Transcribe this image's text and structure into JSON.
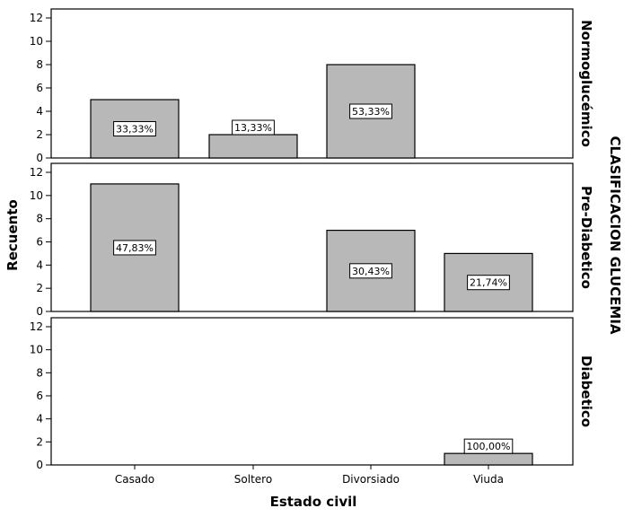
{
  "chart_data": {
    "type": "bar",
    "xlabel": "Estado civil",
    "ylabel": "Recuento",
    "facet_title": "CLASIFICACION GLUCEMIA",
    "categories": [
      "Casado",
      "Soltero",
      "Divorsiado",
      "Viuda"
    ],
    "ylim": [
      0,
      12
    ],
    "yticks": [
      "0",
      "2",
      "4",
      "6",
      "8",
      "10",
      "12"
    ],
    "panels": [
      {
        "name": "Normoglucémico",
        "values": [
          5,
          2,
          8,
          null
        ],
        "labels": [
          "33,33%",
          "13,33%",
          "53,33%",
          ""
        ]
      },
      {
        "name": "Pre-Diabetico",
        "values": [
          11,
          null,
          7,
          5
        ],
        "labels": [
          "47,83%",
          "",
          "30,43%",
          "21,74%"
        ]
      },
      {
        "name": "Diabetico",
        "values": [
          null,
          null,
          null,
          1
        ],
        "labels": [
          "",
          "",
          "",
          "100,00%"
        ]
      }
    ],
    "colors": {
      "bar_fill": "#b8b8b8",
      "bar_stroke": "#000000",
      "label_box_fill": "#ffffff"
    }
  }
}
